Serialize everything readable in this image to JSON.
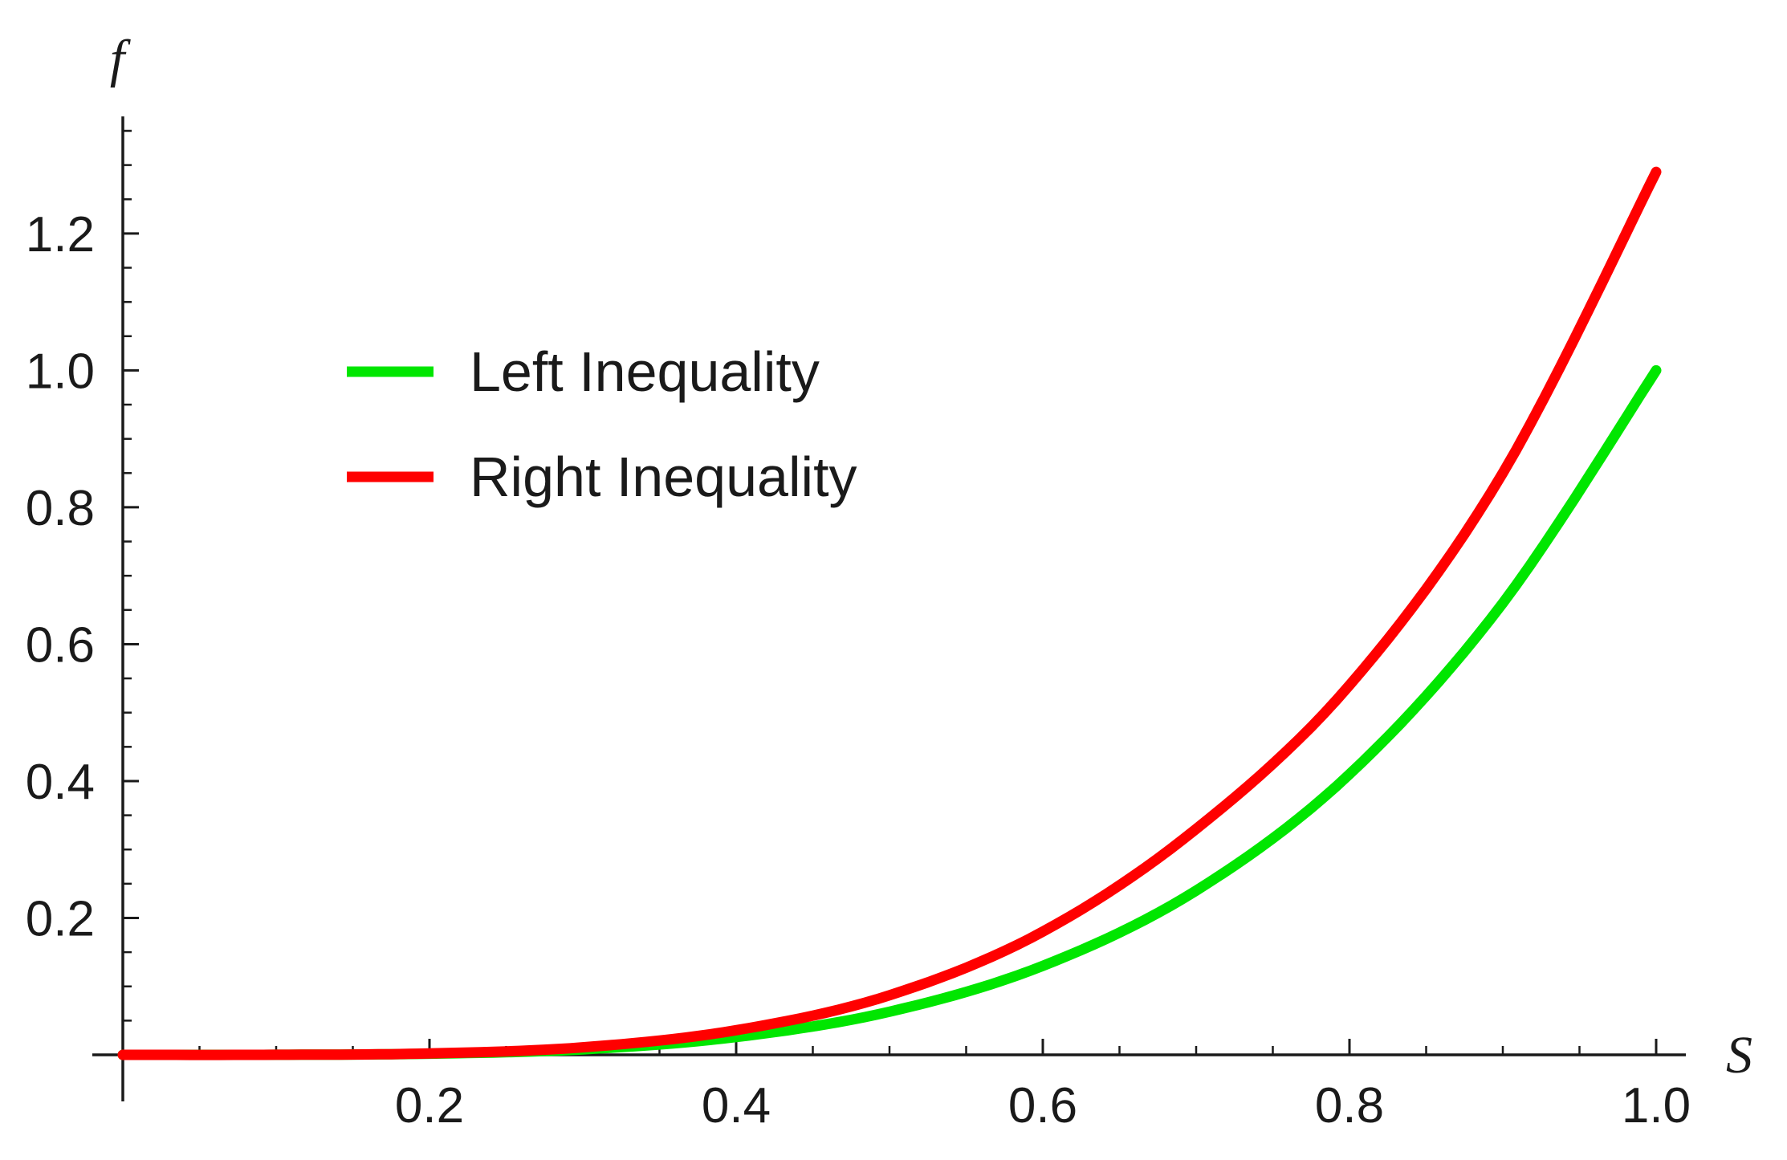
{
  "chart_data": {
    "type": "line",
    "title": "",
    "xlabel": "S",
    "ylabel": "f",
    "xlim": [
      0.0,
      1.0
    ],
    "ylim": [
      0.0,
      1.35
    ],
    "x_ticks": [
      {
        "value": 0.2,
        "label": "0.2"
      },
      {
        "value": 0.4,
        "label": "0.4"
      },
      {
        "value": 0.6,
        "label": "0.6"
      },
      {
        "value": 0.8,
        "label": "0.8"
      },
      {
        "value": 1.0,
        "label": "1.0"
      }
    ],
    "y_ticks": [
      {
        "value": 0.2,
        "label": "0.2"
      },
      {
        "value": 0.4,
        "label": "0.4"
      },
      {
        "value": 0.6,
        "label": "0.6"
      },
      {
        "value": 0.8,
        "label": "0.8"
      },
      {
        "value": 1.0,
        "label": "1.0"
      },
      {
        "value": 1.2,
        "label": "1.2"
      }
    ],
    "grid": false,
    "legend_position": "top-left",
    "x": [
      0.0,
      0.1,
      0.2,
      0.3,
      0.4,
      0.5,
      0.6,
      0.7,
      0.8,
      0.9,
      1.0
    ],
    "series": [
      {
        "name": "Left Inequality",
        "color": "#00e600",
        "values": [
          0.0,
          0.0001,
          0.0016,
          0.008,
          0.026,
          0.063,
          0.13,
          0.24,
          0.41,
          0.66,
          1.0
        ]
      },
      {
        "name": "Right Inequality",
        "color": "#ff0000",
        "values": [
          0.0,
          0.0001,
          0.002,
          0.011,
          0.036,
          0.087,
          0.18,
          0.33,
          0.54,
          0.85,
          1.29
        ]
      }
    ]
  }
}
